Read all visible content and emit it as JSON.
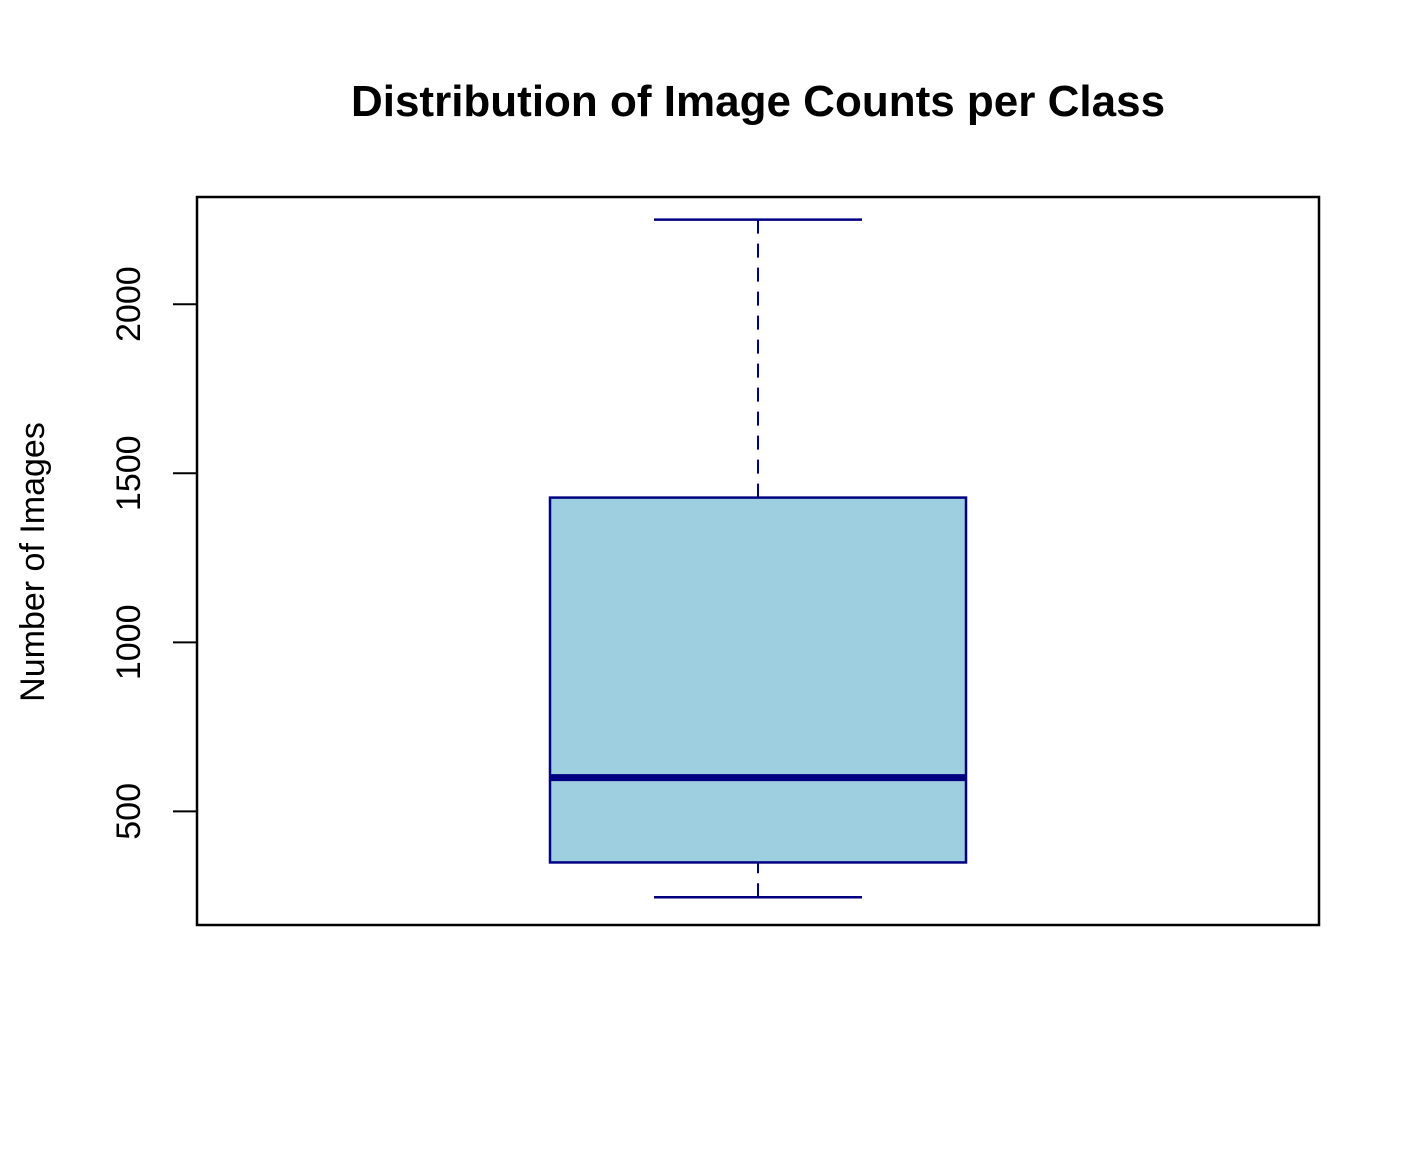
{
  "chart_data": {
    "type": "boxplot",
    "title": "Distribution of Image Counts per Class",
    "xlabel": "",
    "ylabel": "Number of Images",
    "ylim": [
      164,
      2317
    ],
    "yticks": [
      500,
      1000,
      1500,
      2000
    ],
    "grid": false,
    "box": {
      "whisker_low": 246,
      "q1": 349,
      "median": 600,
      "q3": 1428,
      "whisker_high": 2250
    },
    "colors": {
      "fill": "#9ecfe0",
      "stroke": "#000080",
      "axis": "#000000"
    }
  }
}
